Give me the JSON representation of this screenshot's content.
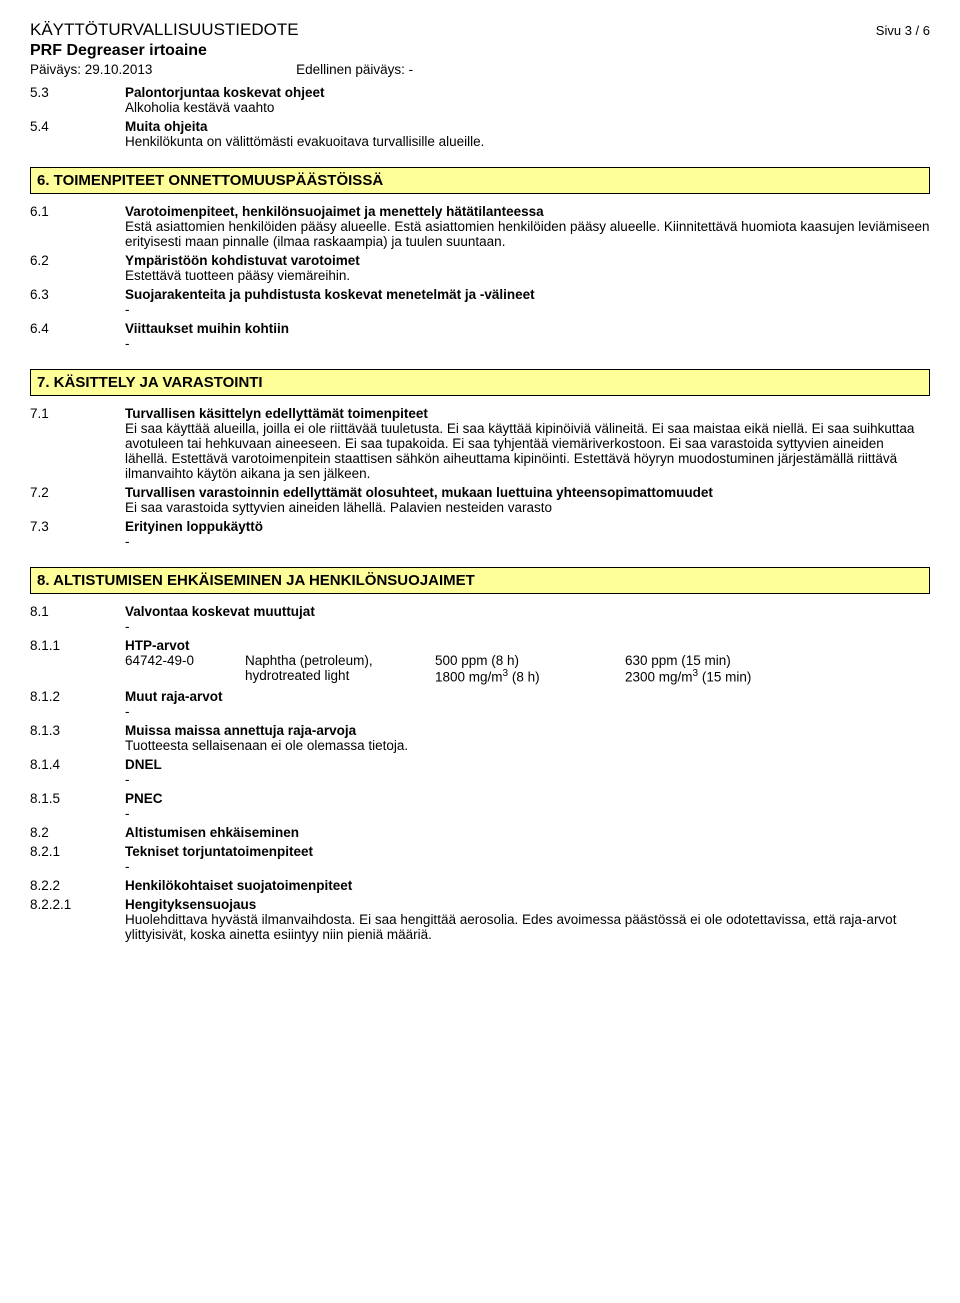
{
  "header": {
    "doc_title": "KÄYTTÖTURVALLISUUSTIEDOTE",
    "page_label": "Sivu 3 / 6",
    "product_name": "PRF Degreaser irtoaine",
    "date_label": "Päiväys: 29.10.2013",
    "prev_date_label": "Edellinen päiväys: -"
  },
  "s5": {
    "e3": {
      "num": "5.3",
      "heading": "Palontorjuntaa koskevat ohjeet",
      "text": "Alkoholia kestävä vaahto"
    },
    "e4": {
      "num": "5.4",
      "heading": "Muita ohjeita",
      "text": "Henkilökunta on välittömästi evakuoitava turvallisille alueille."
    }
  },
  "s6": {
    "title": "6. TOIMENPITEET ONNETTOMUUSPÄÄSTÖISSÄ",
    "e1": {
      "num": "6.1",
      "heading": "Varotoimenpiteet, henkilönsuojaimet ja menettely hätätilanteessa",
      "text": "Estä asiattomien henkilöiden pääsy alueelle. Estä asiattomien henkilöiden pääsy alueelle. Kiinnitettävä huomiota kaasujen leviämiseen erityisesti maan pinnalle (ilmaa raskaampia) ja tuulen suuntaan."
    },
    "e2": {
      "num": "6.2",
      "heading": "Ympäristöön kohdistuvat varotoimet",
      "text": "Estettävä tuotteen pääsy viemäreihin."
    },
    "e3": {
      "num": "6.3",
      "heading": "Suojarakenteita ja puhdistusta koskevat menetelmät ja -välineet",
      "text": "-"
    },
    "e4": {
      "num": "6.4",
      "heading": "Viittaukset muihin kohtiin",
      "text": "-"
    }
  },
  "s7": {
    "title": "7. KÄSITTELY JA VARASTOINTI",
    "e1": {
      "num": "7.1",
      "heading": "Turvallisen käsittelyn edellyttämät toimenpiteet",
      "text": "Ei saa käyttää alueilla, joilla ei ole riittävää tuuletusta. Ei saa käyttää kipinöiviä välineitä. Ei saa maistaa eikä niellä. Ei saa suihkuttaa avotuleen tai hehkuvaan aineeseen. Ei saa tupakoida. Ei saa tyhjentää viemäriverkostoon. Ei saa varastoida syttyvien aineiden lähellä. Estettävä varotoimenpitein staattisen sähkön aiheuttama kipinöinti. Estettävä höyryn muodostuminen järjestämällä riittävä ilmanvaihto käytön aikana ja sen jälkeen."
    },
    "e2": {
      "num": "7.2",
      "heading": "Turvallisen varastoinnin edellyttämät olosuhteet, mukaan luettuina yhteensopimattomuudet",
      "text": "Ei saa varastoida syttyvien aineiden lähellä. Palavien nesteiden varasto"
    },
    "e3": {
      "num": "7.3",
      "heading": "Erityinen loppukäyttö",
      "text": "-"
    }
  },
  "s8": {
    "title": "8. ALTISTUMISEN EHKÄISEMINEN JA HENKILÖNSUOJAIMET",
    "e1": {
      "num": "8.1",
      "heading": "Valvontaa koskevat muuttujat",
      "text": "-"
    },
    "e11": {
      "num": "8.1.1",
      "heading": "HTP-arvot"
    },
    "htp": {
      "cas": "64742-49-0",
      "name1": "Naphtha (petroleum),",
      "name2": "hydrotreated light",
      "v1a": "500 ppm (8 h)",
      "v1b": "630 ppm (15 min)",
      "v2a_pre": "1800 mg/m",
      "v2a_post": " (8 h)",
      "v2b_pre": "2300 mg/m",
      "v2b_post": " (15 min)",
      "sup": "3"
    },
    "e12": {
      "num": "8.1.2",
      "heading": "Muut raja-arvot",
      "text": "-"
    },
    "e13": {
      "num": "8.1.3",
      "heading": "Muissa maissa annettuja raja-arvoja",
      "text": "Tuotteesta sellaisenaan ei ole olemassa tietoja."
    },
    "e14": {
      "num": "8.1.4",
      "heading": "DNEL",
      "text": "-"
    },
    "e15": {
      "num": "8.1.5",
      "heading": "PNEC",
      "text": "-"
    },
    "e2": {
      "num": "8.2",
      "heading": "Altistumisen ehkäiseminen"
    },
    "e21": {
      "num": "8.2.1",
      "heading": "Tekniset torjuntatoimenpiteet",
      "text": "-"
    },
    "e22": {
      "num": "8.2.2",
      "heading": "Henkilökohtaiset suojatoimenpiteet"
    },
    "e221": {
      "num": "8.2.2.1",
      "heading": "Hengityksensuojaus",
      "text": "Huolehdittava hyvästä ilmanvaihdosta. Ei saa hengittää aerosolia. Edes avoimessa päästössä ei ole odotettavissa, että raja-arvot ylittyisivät, koska ainetta esiintyy niin pieniä määriä."
    }
  }
}
